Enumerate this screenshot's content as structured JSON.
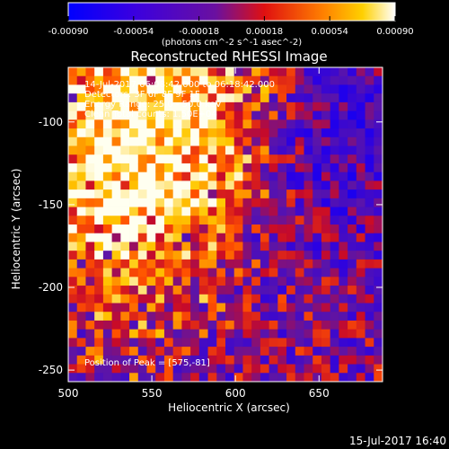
{
  "chart_data": {
    "type": "heatmap",
    "title": "Reconstructed RHESSI Image",
    "xlabel": "Heliocentric X (arcsec)",
    "ylabel": "Heliocentric Y (arcsec)",
    "xlim": [
      500,
      688
    ],
    "ylim": [
      -257,
      -67
    ],
    "xticks": [
      500,
      550,
      600,
      650
    ],
    "yticks": [
      -100,
      -150,
      -200,
      -250
    ],
    "colorbar": {
      "colormap": "blue-purple-red-yellow-white",
      "range": [
        -0.0009,
        0.0009
      ],
      "tick_labels": [
        "-0.00090",
        "-0.00054",
        "-0.00018",
        "0.00018",
        "0.00054",
        "0.00090"
      ],
      "unit_label": "(photons cm^-2 s^-1 asec^-2)"
    },
    "source_peak": {
      "x": 575,
      "y": -81
    },
    "grid": false,
    "annotations": [
      "14-Jul-2017 06:08:42.000 to 06:18:42.000",
      "Detectors: 3F 6F 8F 9F 1F",
      "Energy Range: 25.0 - 50.0 keV",
      "Clean    Total counts: 1.50E+04",
      "Position of Peak = [575,-81]"
    ]
  },
  "footer": {
    "timestamp": "15-Jul-2017 16:40"
  }
}
